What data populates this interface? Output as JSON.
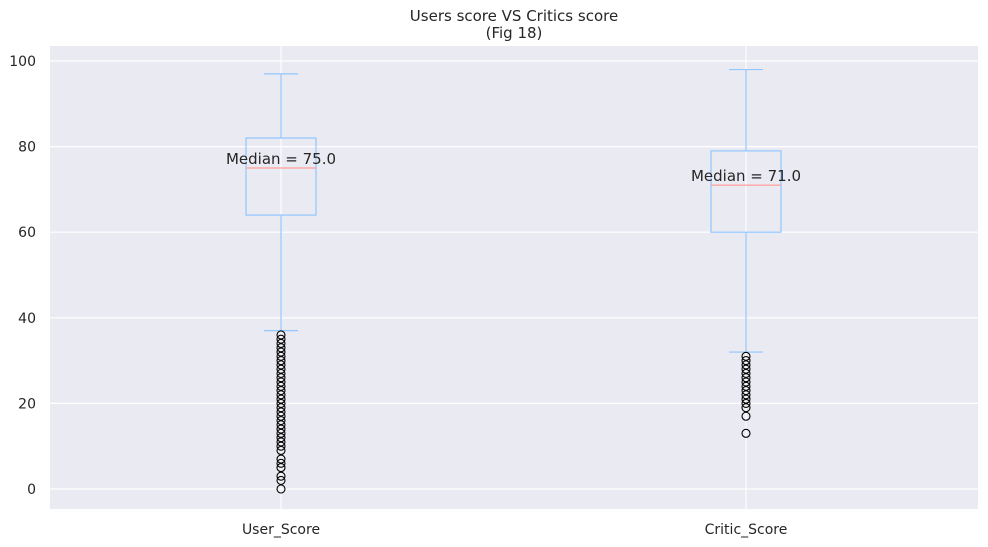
{
  "chart_data": {
    "type": "box",
    "title": "Users score VS Critics score",
    "subtitle": "(Fig 18)",
    "xlabel": "",
    "ylabel": "",
    "ylim": [
      -4.5,
      103
    ],
    "yticks": [
      0,
      20,
      40,
      60,
      80,
      100
    ],
    "grid": true,
    "legend": "none",
    "colors": {
      "background": "#eaeaf2",
      "grid": "#ffffff",
      "box": "#92c6ff",
      "median": "#ff9f9a",
      "flier": "#000000",
      "text": "#262626"
    },
    "categories": [
      "User_Score",
      "Critic_Score"
    ],
    "series": [
      {
        "category": "User_Score",
        "whisker_low": 37,
        "q1": 64,
        "median": 75,
        "q3": 82,
        "whisker_high": 97,
        "annotation": "Median = 75.0",
        "outliers": [
          0,
          2,
          3,
          5,
          6,
          7,
          9,
          10,
          11,
          12,
          13,
          14,
          15,
          16,
          17,
          18,
          19,
          20,
          21,
          22,
          23,
          24,
          25,
          26,
          27,
          28,
          29,
          30,
          31,
          32,
          33,
          34,
          35,
          36
        ]
      },
      {
        "category": "Critic_Score",
        "whisker_low": 32,
        "q1": 60,
        "median": 71,
        "q3": 79,
        "whisker_high": 98,
        "annotation": "Median = 71.0",
        "outliers": [
          13,
          17,
          19,
          20,
          21,
          22,
          23,
          24,
          25,
          26,
          27,
          28,
          29,
          30,
          31
        ]
      }
    ]
  }
}
